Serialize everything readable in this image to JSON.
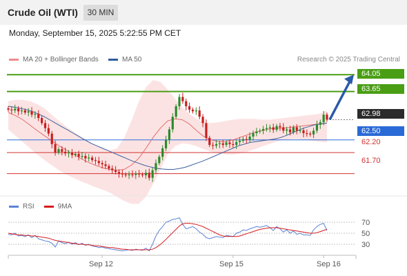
{
  "header": {
    "title": "Crude Oil (WTI)",
    "timeframe": "30 MIN"
  },
  "datetime": "Monday, September 15, 2025 5:22:55 PM CET",
  "legend": {
    "ma20": {
      "label": "MA 20 + Bollinger Bands",
      "color": "#f08a8a"
    },
    "ma50": {
      "label": "MA 50",
      "color": "#2f5c9c"
    }
  },
  "credit": "Research © 2025 Trading Central",
  "rsi_legend": {
    "rsi": {
      "label": "RSI",
      "color": "#5a82d6"
    },
    "ma9": {
      "label": "9MA",
      "color": "#d61a1a"
    }
  },
  "colors": {
    "up": "#2a8a2a",
    "down": "#c81e1e",
    "resistance": "#4a9e14",
    "support": "#2a6ad6",
    "weak": "#d03030",
    "arrow": "#2a5aa8"
  },
  "chart_data": [
    {
      "type": "candlestick",
      "y_range": [
        61.3,
        64.25
      ],
      "levels": [
        {
          "value": 64.05,
          "label": "64.05",
          "kind": "resistance"
        },
        {
          "value": 63.65,
          "label": "63.65",
          "kind": "resistance"
        },
        {
          "value": 62.98,
          "label": "62.98",
          "kind": "last"
        },
        {
          "value": 62.5,
          "label": "62.50",
          "kind": "support"
        },
        {
          "value": 62.2,
          "label": "62.20",
          "kind": "support-weak"
        },
        {
          "value": 61.7,
          "label": "61.70",
          "kind": "support-weak"
        }
      ],
      "x_ticks": [
        {
          "label": "Sep 12",
          "index": 28
        },
        {
          "label": "Sep 15",
          "index": 67
        },
        {
          "label": "Sep 16",
          "index": 94
        }
      ],
      "close": [
        63.22,
        63.2,
        63.24,
        63.18,
        63.2,
        63.15,
        63.18,
        63.1,
        63.12,
        63.02,
        62.9,
        62.78,
        62.65,
        62.4,
        62.2,
        62.28,
        62.22,
        62.18,
        62.2,
        62.14,
        62.17,
        62.1,
        62.12,
        62.06,
        62.08,
        62.02,
        62.0,
        61.95,
        61.92,
        61.88,
        61.82,
        61.78,
        61.74,
        61.7,
        61.68,
        61.66,
        61.68,
        61.67,
        61.7,
        61.68,
        61.66,
        61.72,
        61.6,
        61.78,
        61.95,
        62.1,
        62.3,
        62.5,
        62.75,
        63.05,
        63.3,
        63.52,
        63.42,
        63.3,
        63.22,
        63.18,
        63.2,
        63.05,
        62.9,
        62.55,
        62.38,
        62.36,
        62.4,
        62.42,
        62.38,
        62.44,
        62.4,
        62.38,
        62.45,
        62.48,
        62.52,
        62.5,
        62.58,
        62.66,
        62.7,
        62.72,
        62.76,
        62.78,
        62.8,
        62.74,
        62.83,
        62.8,
        62.72,
        62.75,
        62.68,
        62.8,
        62.72,
        62.73,
        62.66,
        62.65,
        62.63,
        62.72,
        62.86,
        62.92,
        63.1,
        62.98
      ],
      "ma50": [
        63.3,
        63.28,
        63.25,
        63.22,
        63.18,
        63.12,
        63.06,
        62.98,
        62.9,
        62.82,
        62.74,
        62.66,
        62.58,
        62.5,
        62.42,
        62.36,
        62.3,
        62.24,
        62.18,
        62.12,
        62.06,
        62.0,
        61.95,
        61.9,
        61.86,
        61.83,
        61.81,
        61.8,
        61.8,
        61.82,
        61.85,
        61.9,
        61.95,
        62.0,
        62.06,
        62.12,
        62.18,
        62.24,
        62.3,
        62.36,
        62.4,
        62.44,
        62.46,
        62.48,
        62.5,
        62.52,
        62.55,
        62.6,
        62.66,
        62.72,
        62.78,
        62.82,
        62.86,
        62.88,
        62.9
      ],
      "ma20": [
        63.15,
        63.08,
        62.98,
        62.85,
        62.72,
        62.6,
        62.48,
        62.36,
        62.26,
        62.16,
        62.06,
        61.97,
        61.9,
        61.84,
        61.8,
        61.78,
        61.8,
        61.9,
        62.06,
        62.3,
        62.56,
        62.78,
        62.95,
        63.0,
        62.98,
        62.88,
        62.72,
        62.58,
        62.5,
        62.46,
        62.46,
        62.5,
        62.56,
        62.62,
        62.68,
        62.72,
        62.76,
        62.78,
        62.78,
        62.8,
        62.82,
        62.84,
        62.86,
        62.88,
        62.9
      ],
      "bb_upper": [
        63.42,
        63.45,
        63.45,
        63.42,
        63.35,
        63.25,
        63.1,
        62.95,
        62.82,
        62.7,
        62.58,
        62.48,
        62.38,
        62.3,
        62.25,
        62.3,
        62.55,
        62.95,
        63.4,
        63.75,
        63.92,
        63.88,
        63.7,
        63.48,
        63.28,
        63.12,
        63.0,
        62.92,
        62.9,
        62.92,
        62.95,
        62.98,
        63.0,
        63.0,
        63.0,
        62.98,
        62.98,
        63.0,
        63.02,
        63.04,
        63.06,
        63.08,
        63.1,
        63.12,
        63.2
      ],
      "bb_lower": [
        62.75,
        62.6,
        62.45,
        62.3,
        62.15,
        62.02,
        61.9,
        61.78,
        61.68,
        61.6,
        61.52,
        61.45,
        61.38,
        61.32,
        61.25,
        61.15,
        61.05,
        60.98,
        60.98,
        61.15,
        61.45,
        61.8,
        62.15,
        62.35,
        62.42,
        62.4,
        62.35,
        62.28,
        62.22,
        62.18,
        62.15,
        62.15,
        62.18,
        62.22,
        62.28,
        62.34,
        62.4,
        62.46,
        62.5,
        62.52,
        62.52,
        62.5,
        62.48,
        62.46,
        62.44
      ]
    },
    {
      "type": "line",
      "title": "RSI",
      "y_range": [
        10,
        85
      ],
      "y_ticks": [
        70,
        50,
        30
      ],
      "reference_lines": [
        70,
        50,
        30
      ],
      "series": [
        {
          "name": "RSI",
          "values": [
            48,
            47,
            50,
            45,
            46,
            44,
            47,
            42,
            46,
            40,
            38,
            36,
            35,
            32,
            25,
            36,
            33,
            31,
            34,
            30,
            33,
            29,
            32,
            28,
            30,
            27,
            26,
            24,
            25,
            23,
            22,
            21,
            20,
            19,
            18,
            19,
            20,
            19,
            21,
            20,
            19,
            23,
            18,
            30,
            45,
            55,
            62,
            70,
            72,
            75,
            76,
            78,
            66,
            58,
            60,
            62,
            58,
            52,
            48,
            42,
            40,
            42,
            44,
            43,
            42,
            46,
            45,
            44,
            50,
            52,
            56,
            55,
            58,
            60,
            62,
            61,
            62,
            64,
            60,
            55,
            62,
            58,
            52,
            56,
            50,
            54,
            48,
            50,
            47,
            47,
            46,
            56,
            62,
            66,
            68,
            55
          ]
        },
        {
          "name": "9MA",
          "values": [
            50,
            49,
            48,
            47,
            47,
            46,
            46,
            45,
            45,
            44,
            43,
            42,
            41,
            39,
            37,
            36,
            35,
            34,
            33,
            32,
            31,
            30,
            30,
            29,
            29,
            28,
            27,
            27,
            26,
            25,
            24,
            24,
            23,
            22,
            21,
            21,
            20,
            20,
            20,
            20,
            20,
            20,
            20,
            21,
            24,
            28,
            33,
            39,
            45,
            51,
            57,
            63,
            67,
            68,
            68,
            67,
            66,
            64,
            62,
            59,
            56,
            53,
            50,
            47,
            45,
            44,
            44,
            44,
            44,
            45,
            47,
            49,
            51,
            53,
            55,
            57,
            58,
            59,
            60,
            60,
            60,
            59,
            58,
            57,
            56,
            55,
            54,
            53,
            52,
            51,
            50,
            50,
            51,
            53,
            55,
            57
          ]
        }
      ]
    }
  ],
  "levels_text": {
    "l1": "64.05",
    "l2": "63.65",
    "l3": "62.98",
    "l4": "62.50",
    "l5": "62.20",
    "l6": "61.70"
  },
  "rsi_ticks_text": {
    "t70": "70",
    "t50": "50",
    "t30": "30"
  },
  "x_labels_text": {
    "x1": "Sep 12",
    "x2": "Sep 15",
    "x3": "Sep 16"
  }
}
